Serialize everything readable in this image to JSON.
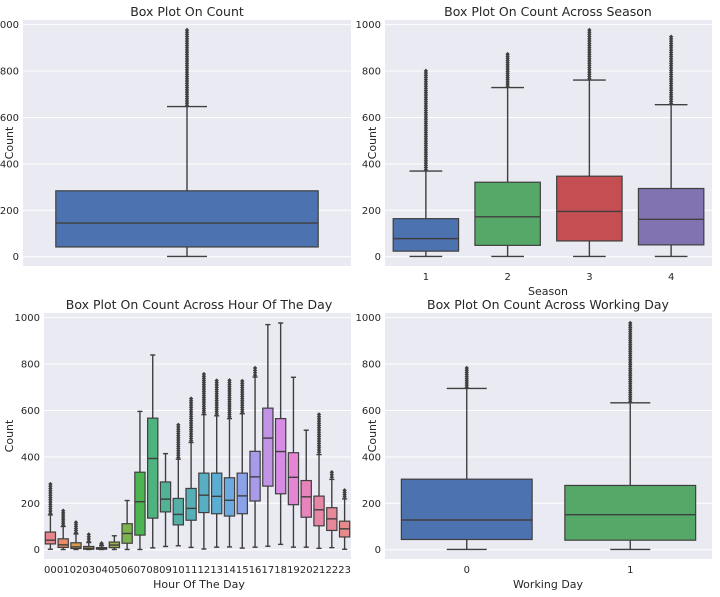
{
  "colors": {
    "background": "#EAEAF2",
    "grid": "#ffffff",
    "line": "#3f3f3f",
    "hour_palette": [
      "#E6858B",
      "#E88B6A",
      "#D89A52",
      "#C6A34F",
      "#B2AA50",
      "#9AB04F",
      "#7BB44F",
      "#4CB552",
      "#4FB380",
      "#52B295",
      "#54B0A6",
      "#56AFB5",
      "#58AEC2",
      "#5BAED1",
      "#6BA9E0",
      "#8BA2E8",
      "#A99BE9",
      "#C294E6",
      "#D78CE3",
      "#E486D4",
      "#E684BB",
      "#E886A6",
      "#E68897",
      "#E68A8C"
    ]
  },
  "chart_data": [
    {
      "type": "box",
      "title": "Box Plot On Count",
      "xlabel": "",
      "ylabel": "Count",
      "ylim": [
        -40,
        1020
      ],
      "yticks": [
        0,
        200,
        400,
        600,
        800,
        1000
      ],
      "categories": [
        ""
      ],
      "colors": [
        "#4C72B0"
      ],
      "boxes": [
        {
          "q1": 42,
          "median": 145,
          "q3": 284,
          "whislo": 1,
          "whishi": 647,
          "flier_from": 652,
          "flier_to": 977
        }
      ]
    },
    {
      "type": "box",
      "title": "Box Plot On Count Across Season",
      "xlabel": "Season",
      "ylabel": "Count",
      "ylim": [
        -40,
        1020
      ],
      "yticks": [
        0,
        200,
        400,
        600,
        800,
        1000
      ],
      "categories": [
        "1",
        "2",
        "3",
        "4"
      ],
      "colors": [
        "#4C72B0",
        "#55A868",
        "#C44E52",
        "#8172B2"
      ],
      "boxes": [
        {
          "q1": 24,
          "median": 78,
          "q3": 164,
          "whislo": 1,
          "whishi": 369,
          "flier_from": 375,
          "flier_to": 801
        },
        {
          "q1": 49,
          "median": 172,
          "q3": 321,
          "whislo": 1,
          "whishi": 729,
          "flier_from": 735,
          "flier_to": 873
        },
        {
          "q1": 68,
          "median": 195,
          "q3": 347,
          "whislo": 1,
          "whishi": 761,
          "flier_from": 767,
          "flier_to": 977
        },
        {
          "q1": 51,
          "median": 161,
          "q3": 294,
          "whislo": 1,
          "whishi": 655,
          "flier_from": 660,
          "flier_to": 948
        }
      ]
    },
    {
      "type": "box",
      "title": "Box Plot On Count Across Hour Of The Day",
      "xlabel": "Hour Of The Day",
      "ylabel": "Count",
      "ylim": [
        -40,
        1020
      ],
      "yticks": [
        0,
        200,
        400,
        600,
        800,
        1000
      ],
      "categories": [
        "00",
        "01",
        "02",
        "03",
        "04",
        "05",
        "06",
        "07",
        "08",
        "09",
        "10",
        "11",
        "12",
        "13",
        "14",
        "15",
        "16",
        "17",
        "18",
        "19",
        "20",
        "21",
        "22",
        "23"
      ],
      "boxes": [
        {
          "q1": 25,
          "median": 41,
          "q3": 76,
          "whislo": 2,
          "whishi": 150,
          "flier_from": 157,
          "flier_to": 283
        },
        {
          "q1": 10,
          "median": 21,
          "q3": 47,
          "whislo": 1,
          "whishi": 100,
          "flier_from": 105,
          "flier_to": 168
        },
        {
          "q1": 5,
          "median": 12,
          "q3": 30,
          "whislo": 1,
          "whishi": 68,
          "flier_from": 73,
          "flier_to": 118
        },
        {
          "q1": 2,
          "median": 6,
          "q3": 14,
          "whislo": 1,
          "whishi": 31,
          "flier_from": 36,
          "flier_to": 66
        },
        {
          "q1": 2,
          "median": 5,
          "q3": 9,
          "whislo": 1,
          "whishi": 17,
          "flier_from": 21,
          "flier_to": 28
        },
        {
          "q1": 9,
          "median": 20,
          "q3": 33,
          "whislo": 1,
          "whishi": 60,
          "flier_from": 0,
          "flier_to": 0
        },
        {
          "q1": 28,
          "median": 70,
          "q3": 112,
          "whislo": 1,
          "whishi": 212,
          "flier_from": 0,
          "flier_to": 0
        },
        {
          "q1": 63,
          "median": 207,
          "q3": 334,
          "whislo": 1,
          "whishi": 596,
          "flier_from": 0,
          "flier_to": 0
        },
        {
          "q1": 136,
          "median": 393,
          "q3": 567,
          "whislo": 8,
          "whishi": 839,
          "flier_from": 0,
          "flier_to": 0
        },
        {
          "q1": 163,
          "median": 218,
          "q3": 292,
          "whislo": 14,
          "whishi": 414,
          "flier_from": 0,
          "flier_to": 0
        },
        {
          "q1": 107,
          "median": 152,
          "q3": 221,
          "whislo": 17,
          "whishi": 390,
          "flier_from": 398,
          "flier_to": 538
        },
        {
          "q1": 127,
          "median": 178,
          "q3": 264,
          "whislo": 10,
          "whishi": 462,
          "flier_from": 470,
          "flier_to": 651
        },
        {
          "q1": 160,
          "median": 235,
          "q3": 330,
          "whislo": 3,
          "whishi": 582,
          "flier_from": 590,
          "flier_to": 757
        },
        {
          "q1": 155,
          "median": 230,
          "q3": 330,
          "whislo": 11,
          "whishi": 577,
          "flier_from": 585,
          "flier_to": 729
        },
        {
          "q1": 145,
          "median": 213,
          "q3": 310,
          "whislo": 12,
          "whishi": 565,
          "flier_from": 573,
          "flier_to": 730
        },
        {
          "q1": 155,
          "median": 232,
          "q3": 330,
          "whislo": 7,
          "whishi": 586,
          "flier_from": 594,
          "flier_to": 727
        },
        {
          "q1": 210,
          "median": 314,
          "q3": 424,
          "whislo": 11,
          "whishi": 744,
          "flier_from": 752,
          "flier_to": 783
        },
        {
          "q1": 274,
          "median": 481,
          "q3": 610,
          "whislo": 15,
          "whishi": 970,
          "flier_from": 0,
          "flier_to": 0
        },
        {
          "q1": 241,
          "median": 423,
          "q3": 565,
          "whislo": 23,
          "whishi": 977,
          "flier_from": 0,
          "flier_to": 0
        },
        {
          "q1": 194,
          "median": 312,
          "q3": 418,
          "whislo": 11,
          "whishi": 743,
          "flier_from": 0,
          "flier_to": 0
        },
        {
          "q1": 140,
          "median": 228,
          "q3": 298,
          "whislo": 11,
          "whishi": 515,
          "flier_from": 0,
          "flier_to": 0
        },
        {
          "q1": 103,
          "median": 172,
          "q3": 231,
          "whislo": 6,
          "whishi": 410,
          "flier_from": 420,
          "flier_to": 583
        },
        {
          "q1": 83,
          "median": 133,
          "q3": 181,
          "whislo": 9,
          "whishi": 303,
          "flier_from": 313,
          "flier_to": 334
        },
        {
          "q1": 55,
          "median": 90,
          "q3": 123,
          "whislo": 2,
          "whishi": 219,
          "flier_from": 228,
          "flier_to": 256
        }
      ]
    },
    {
      "type": "box",
      "title": "Box Plot On Count Across Working Day",
      "xlabel": "Working Day",
      "ylabel": "Count",
      "ylim": [
        -40,
        1020
      ],
      "yticks": [
        0,
        200,
        400,
        600,
        800,
        1000
      ],
      "categories": [
        "0",
        "1"
      ],
      "colors": [
        "#4C72B0",
        "#55A868"
      ],
      "boxes": [
        {
          "q1": 44,
          "median": 128,
          "q3": 304,
          "whislo": 1,
          "whishi": 695,
          "flier_from": 700,
          "flier_to": 783
        },
        {
          "q1": 41,
          "median": 151,
          "q3": 277,
          "whislo": 1,
          "whishi": 633,
          "flier_from": 640,
          "flier_to": 977
        }
      ]
    }
  ]
}
